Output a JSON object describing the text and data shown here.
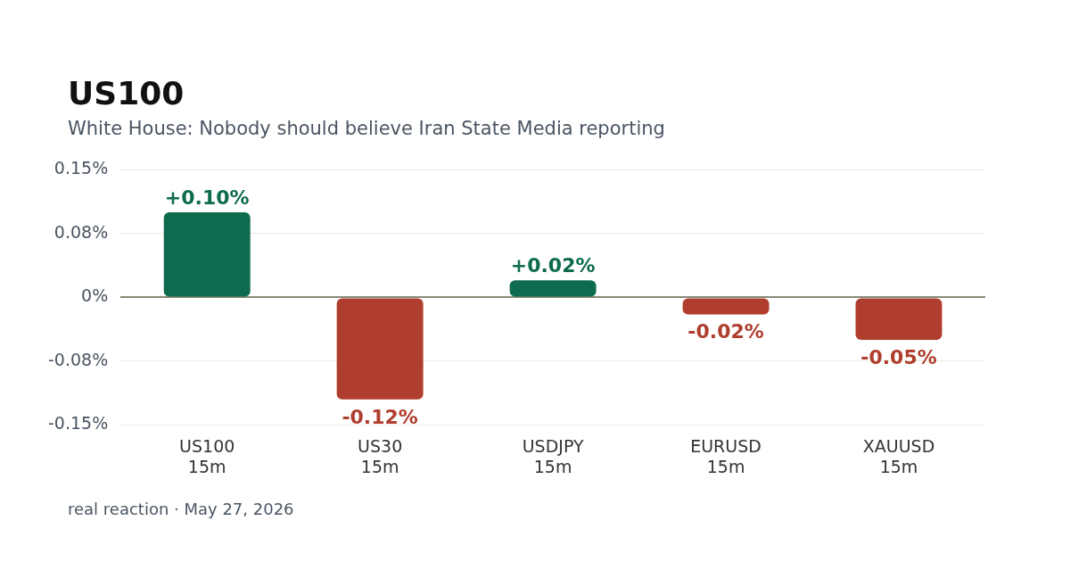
{
  "chart_data": {
    "type": "bar",
    "title": "US100",
    "subtitle": "White House: Nobody should believe Iran State Media reporting",
    "categories": [
      "US100\n15m",
      "US30\n15m",
      "USDJPY\n15m",
      "EURUSD\n15m",
      "XAUUSD\n15m"
    ],
    "values": [
      0.1,
      -0.12,
      0.02,
      -0.02,
      -0.05
    ],
    "colors": [
      "#0e6b4f",
      "#b03e2e",
      "#0e6b4f",
      "#b03e2e",
      "#b03e2e"
    ],
    "value_labels": [
      "+0.10%",
      "-0.12%",
      "+0.02%",
      "-0.02%",
      "-0.05%"
    ],
    "ylim": [
      -0.15,
      0.15
    ],
    "yticks": [
      {
        "value": -0.15,
        "label": "-0.15%"
      },
      {
        "value": -0.075,
        "label": "-0.08%"
      },
      {
        "value": 0,
        "label": "0%"
      },
      {
        "value": 0.075,
        "label": "0.08%"
      },
      {
        "value": 0.15,
        "label": "0.15%"
      }
    ],
    "grid": "y",
    "legend": false,
    "annotations": [
      "real reaction · May 27, 2026"
    ]
  }
}
